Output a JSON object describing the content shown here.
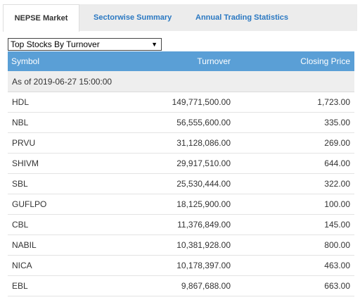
{
  "tabs": [
    {
      "label": "NEPSE Market"
    },
    {
      "label": "Sectorwise Summary"
    },
    {
      "label": "Annual Trading Statistics"
    }
  ],
  "dropdown": {
    "selected": "Top Stocks By Turnover"
  },
  "table": {
    "headers": {
      "symbol": "Symbol",
      "turnover": "Turnover",
      "closing_price": "Closing Price"
    },
    "as_of": "As of 2019-06-27 15:00:00",
    "rows": [
      {
        "symbol": "HDL",
        "turnover": "149,771,500.00",
        "closing_price": "1,723.00"
      },
      {
        "symbol": "NBL",
        "turnover": "56,555,600.00",
        "closing_price": "335.00"
      },
      {
        "symbol": "PRVU",
        "turnover": "31,128,086.00",
        "closing_price": "269.00"
      },
      {
        "symbol": "SHIVM",
        "turnover": "29,917,510.00",
        "closing_price": "644.00"
      },
      {
        "symbol": "SBL",
        "turnover": "25,530,444.00",
        "closing_price": "322.00"
      },
      {
        "symbol": "GUFLPO",
        "turnover": "18,125,900.00",
        "closing_price": "100.00"
      },
      {
        "symbol": "CBL",
        "turnover": "11,376,849.00",
        "closing_price": "145.00"
      },
      {
        "symbol": "NABIL",
        "turnover": "10,381,928.00",
        "closing_price": "800.00"
      },
      {
        "symbol": "NICA",
        "turnover": "10,178,397.00",
        "closing_price": "463.00"
      },
      {
        "symbol": "EBL",
        "turnover": "9,867,688.00",
        "closing_price": "663.00"
      }
    ]
  }
}
